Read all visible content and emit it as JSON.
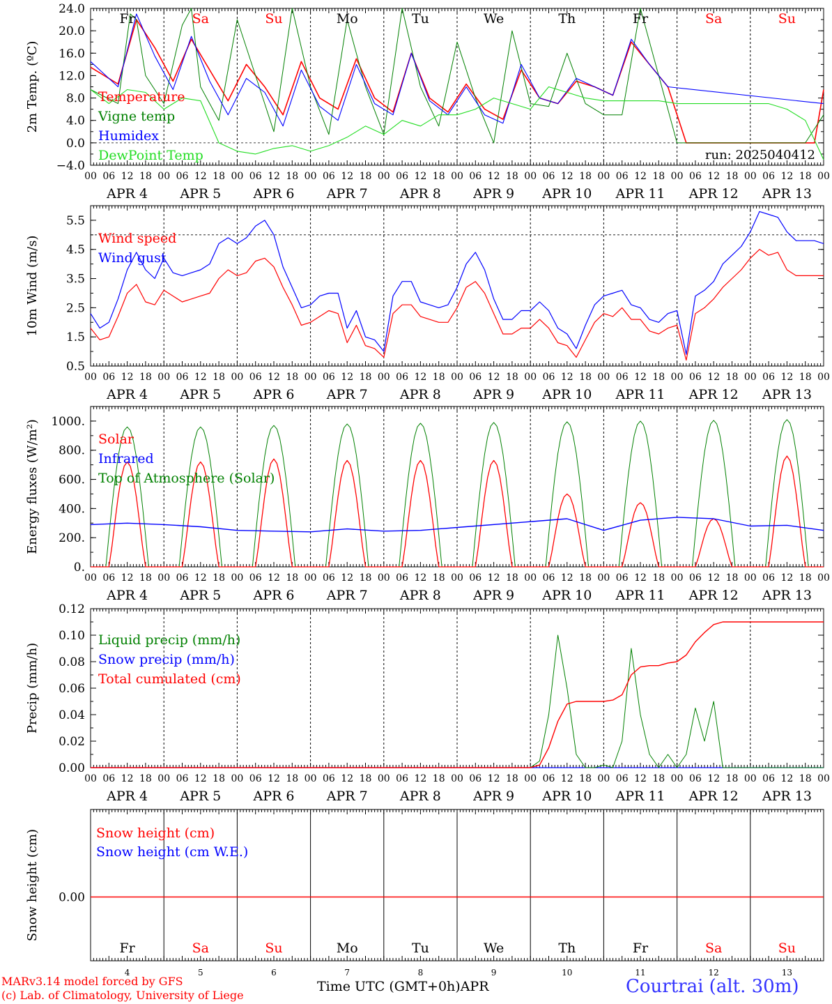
{
  "days": [
    "4",
    "5",
    "6",
    "7",
    "8",
    "9",
    "10",
    "11",
    "12",
    "13"
  ],
  "day_names": [
    "Fr",
    "Sa",
    "Su",
    "Mo",
    "Tu",
    "We",
    "Th",
    "Fr",
    "Sa",
    "Su"
  ],
  "weekend_flags": [
    false,
    true,
    true,
    false,
    false,
    false,
    false,
    false,
    true,
    true
  ],
  "month_label": "APR",
  "hour_ticks": [
    "00",
    "06",
    "12",
    "18"
  ],
  "colors": {
    "red": "#ff0000",
    "green": "#008000",
    "blue": "#0000ff",
    "lightgreen": "#22dd22",
    "station": "#3333ff"
  },
  "footer": {
    "model": "MARv3.14 model forced by GFS",
    "copyright": "(c) Lab. of Climatology, University of Liege",
    "time_label": "Time UTC (GMT+0h)",
    "month": "APR",
    "station": "Courtrai (alt. 30m)"
  },
  "chart_data": [
    {
      "type": "line",
      "ylabel": "2m Temp. (ºC)",
      "ylim": [
        -4,
        24
      ],
      "yticks": [
        "24.0",
        "20.0",
        "16.0",
        "12.0",
        "8.0",
        "4.0",
        "0.0",
        "−4.0"
      ],
      "ytick_values": [
        24,
        20,
        16,
        12,
        8,
        4,
        0,
        -4
      ],
      "ref_line": 0,
      "annotation": "run: 2025040412",
      "x_hours_from": "APR 4 00 UTC",
      "series": [
        {
          "name": "Temperature",
          "color": "#ff0000",
          "x": [
            0,
            9,
            15,
            21,
            27,
            33,
            39,
            45,
            51,
            57,
            63,
            69,
            75,
            81,
            87,
            93,
            99,
            105,
            111,
            117,
            123,
            129,
            135,
            141,
            147,
            153,
            159,
            165,
            171,
            177,
            183,
            189,
            195,
            201,
            207,
            213,
            219,
            225,
            231,
            237,
            240
          ],
          "y": [
            13.5,
            10.5,
            22,
            17,
            11,
            18.5,
            13,
            7.5,
            14,
            10,
            5,
            14.5,
            8,
            6,
            15,
            8,
            5.5,
            16,
            8,
            5.5,
            10.5,
            6,
            4.2,
            13,
            8,
            7,
            11,
            10,
            8.5,
            18,
            14,
            10,
            0,
            0,
            0,
            0,
            0,
            0,
            0,
            0,
            9.5
          ]
        },
        {
          "name": "Vigne temp",
          "color": "#008000",
          "x": [
            0,
            9,
            13,
            15,
            18,
            24,
            30,
            33,
            36,
            42,
            48,
            54,
            60,
            66,
            72,
            78,
            84,
            90,
            96,
            102,
            108,
            114,
            120,
            126,
            132,
            138,
            144,
            150,
            156,
            162,
            168,
            174,
            180,
            186,
            192,
            198,
            204,
            210,
            216,
            222,
            228,
            234,
            240
          ],
          "y": [
            9.5,
            7,
            23,
            22,
            12,
            7,
            21,
            24,
            10,
            4,
            22,
            12,
            2,
            24,
            10,
            1.5,
            22,
            10,
            1.5,
            24,
            10,
            3,
            18,
            8,
            0,
            20,
            7,
            6.5,
            16,
            7,
            5,
            5,
            24,
            12,
            0,
            0,
            0,
            0,
            0,
            0,
            0,
            0,
            5
          ]
        },
        {
          "name": "Humidex",
          "color": "#0000ff",
          "x": [
            0,
            9,
            15,
            21,
            27,
            33,
            39,
            45,
            51,
            57,
            63,
            69,
            75,
            81,
            87,
            93,
            99,
            105,
            111,
            117,
            123,
            129,
            135,
            141,
            147,
            153,
            159,
            165,
            171,
            177,
            183,
            189,
            240
          ],
          "y": [
            14.5,
            10,
            23,
            15.5,
            9.5,
            19,
            11,
            5,
            11.5,
            9,
            3,
            13,
            6.5,
            4,
            14,
            7,
            5,
            16,
            7.5,
            5,
            10,
            5,
            3.5,
            14,
            8,
            7,
            11.5,
            10,
            8.5,
            18.5,
            14,
            10,
            7
          ]
        },
        {
          "name": "DewPoint Temp",
          "color": "#22dd22",
          "x": [
            0,
            6,
            12,
            18,
            24,
            30,
            36,
            42,
            48,
            54,
            60,
            66,
            72,
            78,
            84,
            90,
            96,
            102,
            108,
            114,
            120,
            126,
            132,
            138,
            144,
            150,
            156,
            162,
            168,
            174,
            180,
            186,
            192,
            198,
            204,
            210,
            216,
            222,
            228,
            234,
            240
          ],
          "y": [
            9.5,
            7,
            9.5,
            9,
            6,
            8,
            7.5,
            0,
            -1.5,
            -2,
            -1,
            -0.5,
            -1.5,
            -0.5,
            1,
            3,
            1.5,
            4,
            3,
            5,
            5,
            6,
            8,
            7,
            6,
            10,
            9,
            8,
            7.5,
            7.5,
            7.5,
            7.5,
            7,
            7,
            7,
            7,
            7,
            7,
            6,
            4,
            -3
          ]
        }
      ]
    },
    {
      "type": "line",
      "ylabel": "10m Wind (m/s)",
      "ylim": [
        0.5,
        6
      ],
      "yticks": [
        "5.5",
        "4.5",
        "3.5",
        "2.5",
        "1.5",
        "0.5"
      ],
      "ytick_values": [
        5.5,
        4.5,
        3.5,
        2.5,
        1.5,
        0.5
      ],
      "ref_line": 5,
      "series": [
        {
          "name": "Wind speed",
          "color": "#ff0000",
          "x": [
            0,
            3,
            6,
            9,
            12,
            15,
            18,
            21,
            24,
            27,
            30,
            33,
            36,
            39,
            42,
            45,
            48,
            51,
            54,
            57,
            60,
            63,
            66,
            69,
            72,
            75,
            78,
            81,
            84,
            87,
            90,
            93,
            96,
            99,
            102,
            105,
            108,
            111,
            114,
            117,
            120,
            123,
            126,
            129,
            132,
            135,
            138,
            141,
            144,
            147,
            150,
            153,
            156,
            159,
            162,
            165,
            168,
            171,
            174,
            177,
            180,
            183,
            186,
            189,
            192,
            195,
            198,
            201,
            204,
            207,
            210,
            213,
            216,
            219,
            222,
            225,
            228,
            231,
            234,
            237,
            240
          ],
          "y": [
            1.8,
            1.4,
            1.5,
            2.2,
            3,
            3.3,
            2.7,
            2.6,
            3.1,
            2.9,
            2.7,
            2.8,
            2.9,
            3,
            3.5,
            3.8,
            3.6,
            3.7,
            4.1,
            4.2,
            3.9,
            3.2,
            2.6,
            1.9,
            2,
            2.2,
            2.4,
            2.3,
            1.3,
            1.9,
            1.2,
            1.1,
            0.8,
            2.3,
            2.6,
            2.6,
            2.2,
            2.1,
            2,
            2,
            2.5,
            3.2,
            3.4,
            3,
            2.3,
            1.6,
            1.6,
            1.8,
            1.8,
            2.1,
            1.8,
            1.3,
            1.2,
            0.8,
            1.4,
            2,
            2.3,
            2.2,
            2.5,
            2.1,
            2.1,
            1.7,
            1.6,
            1.8,
            1.9,
            0.7,
            2.3,
            2.5,
            2.8,
            3.2,
            3.5,
            3.8,
            4.2,
            4.5,
            4.3,
            4.4,
            3.8,
            3.6,
            3.6,
            3.6,
            3.6
          ]
        },
        {
          "name": "Wind gust",
          "color": "#0000ff",
          "x": [
            0,
            3,
            6,
            9,
            12,
            15,
            18,
            21,
            24,
            27,
            30,
            33,
            36,
            39,
            42,
            45,
            48,
            51,
            54,
            57,
            60,
            63,
            66,
            69,
            72,
            75,
            78,
            81,
            84,
            87,
            90,
            93,
            96,
            99,
            102,
            105,
            108,
            111,
            114,
            117,
            120,
            123,
            126,
            129,
            132,
            135,
            138,
            141,
            144,
            147,
            150,
            153,
            156,
            159,
            162,
            165,
            168,
            171,
            174,
            177,
            180,
            183,
            186,
            189,
            192,
            195,
            198,
            201,
            204,
            207,
            210,
            213,
            216,
            219,
            222,
            225,
            228,
            231,
            234,
            237,
            240
          ],
          "y": [
            2.3,
            1.8,
            2,
            2.8,
            3.8,
            4.4,
            3.8,
            3.5,
            4.2,
            3.7,
            3.6,
            3.7,
            3.8,
            4,
            4.7,
            4.9,
            4.7,
            4.9,
            5.3,
            5.5,
            5,
            3.9,
            3.2,
            2.5,
            2.6,
            2.9,
            3,
            3,
            1.8,
            2.4,
            1.5,
            1.4,
            1,
            2.9,
            3.4,
            3.4,
            2.7,
            2.6,
            2.5,
            2.6,
            3.2,
            4,
            4.4,
            3.8,
            2.8,
            2.1,
            2.1,
            2.4,
            2.4,
            2.7,
            2.4,
            1.8,
            1.6,
            1.1,
            1.9,
            2.6,
            2.9,
            3,
            3.1,
            2.6,
            2.5,
            2.1,
            2,
            2.3,
            2.4,
            0.9,
            2.9,
            3.1,
            3.4,
            4,
            4.3,
            4.6,
            5.1,
            5.8,
            5.7,
            5.6,
            5.1,
            4.8,
            4.8,
            4.8,
            4.7
          ]
        }
      ]
    },
    {
      "type": "line",
      "ylabel": "Energy fluxes (W/m²)",
      "ylim": [
        0,
        1100
      ],
      "yticks": [
        "1000.",
        "800.",
        "600.",
        "400.",
        "200.",
        "0."
      ],
      "ytick_values": [
        1000,
        800,
        600,
        400,
        200,
        0
      ],
      "day_peaks_solar": [
        720,
        720,
        740,
        730,
        730,
        730,
        500,
        440,
        330,
        760
      ],
      "day_peaks_toa": [
        960,
        960,
        970,
        980,
        985,
        990,
        995,
        1000,
        1005,
        1010
      ],
      "series": [
        {
          "name": "Solar",
          "color": "#ff0000",
          "x": [],
          "y": []
        },
        {
          "name": "Infrared",
          "color": "#0000ff",
          "x": [
            0,
            12,
            24,
            36,
            48,
            60,
            72,
            84,
            96,
            108,
            120,
            144,
            156,
            168,
            180,
            192,
            204,
            216,
            228,
            240
          ],
          "y": [
            290,
            300,
            290,
            275,
            250,
            245,
            240,
            260,
            245,
            250,
            270,
            310,
            330,
            250,
            320,
            340,
            330,
            280,
            285,
            250
          ]
        },
        {
          "name": "Top of Atmosphere (Solar)",
          "color": "#008000",
          "x": [],
          "y": []
        }
      ]
    },
    {
      "type": "line",
      "ylabel": "Precip (mm/h)",
      "ylim": [
        0,
        0.12
      ],
      "yticks": [
        "0.12",
        "0.10",
        "0.08",
        "0.06",
        "0.04",
        "0.02",
        "0.00"
      ],
      "ytick_values": [
        0.12,
        0.1,
        0.08,
        0.06,
        0.04,
        0.02,
        0
      ],
      "series": [
        {
          "name": "Liquid precip (mm/h)",
          "color": "#008000",
          "x": [
            0,
            144,
            147,
            150,
            153,
            156,
            159,
            162,
            165,
            168,
            171,
            174,
            177,
            180,
            183,
            186,
            189,
            192,
            195,
            198,
            201,
            204,
            207,
            240
          ],
          "y": [
            0,
            0,
            0.005,
            0.04,
            0.1,
            0.06,
            0.01,
            0,
            0,
            0.002,
            0,
            0.02,
            0.09,
            0.04,
            0.01,
            0,
            0.01,
            0,
            0.01,
            0.045,
            0.02,
            0.05,
            0,
            0
          ]
        },
        {
          "name": "Snow precip (mm/h)",
          "color": "#0000ff",
          "x": [
            0,
            240
          ],
          "y": [
            0,
            0
          ]
        },
        {
          "name": "Total cumulated (cm)",
          "color": "#ff0000",
          "x": [
            0,
            144,
            147,
            150,
            153,
            156,
            159,
            162,
            165,
            168,
            171,
            174,
            177,
            180,
            183,
            186,
            189,
            192,
            195,
            198,
            201,
            204,
            207,
            210,
            240
          ],
          "y": [
            0,
            0,
            0.002,
            0.015,
            0.035,
            0.048,
            0.05,
            0.05,
            0.05,
            0.05,
            0.051,
            0.055,
            0.07,
            0.076,
            0.077,
            0.077,
            0.079,
            0.08,
            0.085,
            0.095,
            0.102,
            0.108,
            0.11,
            0.11,
            0.11
          ]
        }
      ]
    },
    {
      "type": "line",
      "ylabel": "Snow height (cm)",
      "yticks": [
        "0.00"
      ],
      "ytick_values": [
        0
      ],
      "series": [
        {
          "name": "Snow height (cm)",
          "color": "#ff0000",
          "x": [
            0,
            240
          ],
          "y": [
            0,
            0
          ]
        },
        {
          "name": "Snow height (cm W.E.)",
          "color": "#0000ff",
          "x": [
            0,
            240
          ],
          "y": [
            0,
            0
          ]
        }
      ]
    }
  ]
}
